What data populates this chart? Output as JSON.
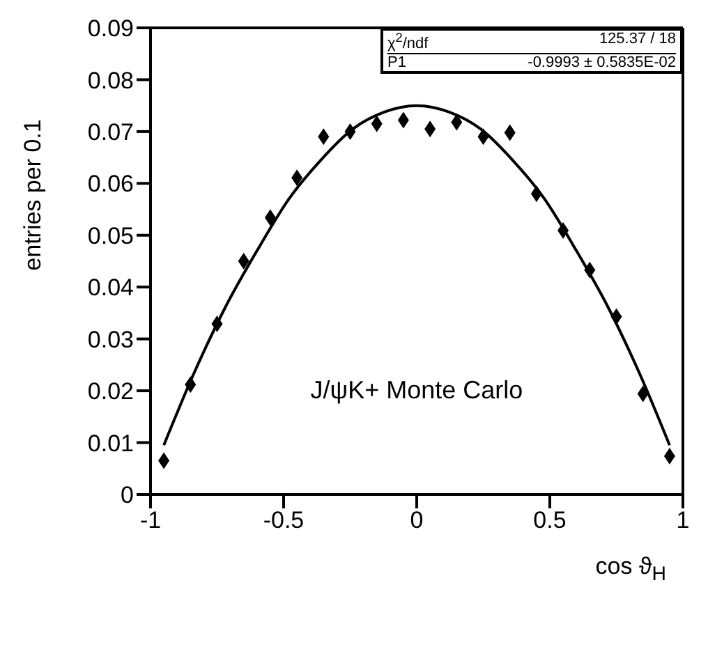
{
  "chart_data": {
    "type": "scatter",
    "xlabel": "cos ϑ$_{H}$",
    "ylabel": "entries per 0.1",
    "xlim": [
      -1,
      1
    ],
    "xticks": [
      -1,
      -0.5,
      0,
      0.5,
      1
    ],
    "ylim": [
      0,
      0.09
    ],
    "yticks": [
      0,
      0.01,
      0.02,
      0.03,
      0.04,
      0.05,
      0.06,
      0.07,
      0.08,
      0.09
    ],
    "grid": false,
    "legend": false,
    "annotations": [
      "χ$^{2}$/ndf 125.37 / 18",
      "P1 -0.9993 ± 0.5835E-02",
      "J/ψK+ Monte Carlo"
    ],
    "series": [
      {
        "type": "scatter",
        "marker": "diamond",
        "color": "#000000",
        "x": [
          -0.95,
          -0.85,
          -0.75,
          -0.65,
          -0.55,
          -0.45,
          -0.35,
          -0.25,
          -0.15,
          -0.05,
          0.05,
          0.15,
          0.25,
          0.35,
          0.45,
          0.55,
          0.65,
          0.75,
          0.85,
          0.95
        ],
        "values": [
          0.0065,
          0.0212,
          0.0329,
          0.045,
          0.0534,
          0.0611,
          0.069,
          0.07,
          0.0715,
          0.0722,
          0.0705,
          0.0718,
          0.069,
          0.0698,
          0.058,
          0.0509,
          0.0433,
          0.0343,
          0.0194,
          0.0074
        ],
        "errors": [
          0.001,
          0.001,
          0.001,
          0.001,
          0.001,
          0.001,
          0.001,
          0.001,
          0.001,
          0.001,
          0.001,
          0.001,
          0.001,
          0.001,
          0.001,
          0.001,
          0.001,
          0.001,
          0.001,
          0.001
        ]
      },
      {
        "type": "line",
        "marker": "none",
        "color": "#000000",
        "x": [
          -0.95,
          -0.84,
          -0.72,
          -0.6,
          -0.48,
          -0.36,
          -0.24,
          -0.12,
          0,
          0.12,
          0.24,
          0.36,
          0.48,
          0.6,
          0.72,
          0.84,
          0.95
        ],
        "values": [
          0.0095,
          0.023,
          0.036,
          0.047,
          0.057,
          0.0645,
          0.0705,
          0.0738,
          0.075,
          0.0738,
          0.0705,
          0.0645,
          0.057,
          0.047,
          0.036,
          0.023,
          0.0095
        ]
      }
    ]
  }
}
